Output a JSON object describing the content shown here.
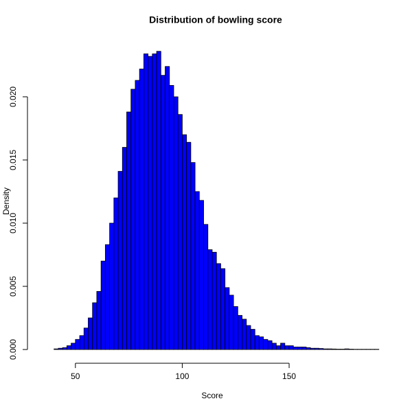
{
  "chart_data": {
    "type": "histogram",
    "title": "Distribution of bowling score",
    "x_label": "Score",
    "y_label": "Density",
    "color": "#0000ff",
    "bins": [
      40,
      42,
      44,
      46,
      48,
      50,
      52,
      54,
      56,
      58,
      60,
      62,
      64,
      66,
      68,
      70,
      72,
      74,
      76,
      78,
      80,
      82,
      84,
      86,
      88,
      90,
      92,
      94,
      96,
      98,
      100,
      102,
      104,
      106,
      108,
      110,
      112,
      114,
      116,
      118,
      120,
      122,
      124,
      126,
      128,
      130,
      132,
      134,
      136,
      138,
      140,
      142,
      144,
      146,
      148,
      150,
      152,
      154,
      156,
      158,
      160,
      162,
      164,
      166,
      168,
      170,
      172,
      174,
      176,
      178,
      180,
      182,
      184,
      186,
      188,
      190,
      192
    ],
    "values": [
      5e-05,
      0.0001,
      0.00015,
      0.0003,
      0.0005,
      0.0008,
      0.0011,
      0.0017,
      0.0025,
      0.0037,
      0.0046,
      0.007,
      0.0083,
      0.01,
      0.012,
      0.0141,
      0.016,
      0.0188,
      0.0206,
      0.0213,
      0.0222,
      0.0234,
      0.0232,
      0.0234,
      0.0236,
      0.0217,
      0.0224,
      0.0209,
      0.02,
      0.0186,
      0.017,
      0.0164,
      0.0148,
      0.0125,
      0.0118,
      0.0099,
      0.0079,
      0.0077,
      0.0068,
      0.0064,
      0.0049,
      0.0043,
      0.0034,
      0.0027,
      0.0024,
      0.0019,
      0.0016,
      0.0011,
      0.001,
      0.0008,
      0.0007,
      0.0005,
      0.0003,
      0.0005,
      0.0003,
      0.0003,
      0.0002,
      0.0002,
      0.0002,
      0.00015,
      0.0001,
      0.0001,
      8e-05,
      5e-05,
      5e-05,
      4e-05,
      3e-05,
      3e-05,
      5e-05,
      3e-05,
      2e-05,
      2e-05,
      2e-05,
      2e-05,
      2e-05,
      2e-05
    ],
    "xlim": [
      34,
      194
    ],
    "ylim": [
      0,
      0.0244
    ],
    "xticks": [
      50,
      100,
      150
    ],
    "yticks": [
      {
        "value": 0,
        "label": "0.000"
      },
      {
        "value": 0.005,
        "label": "0.005"
      },
      {
        "value": 0.01,
        "label": "0.010"
      },
      {
        "value": 0.015,
        "label": "0.015"
      },
      {
        "value": 0.02,
        "label": "0.020"
      }
    ]
  }
}
